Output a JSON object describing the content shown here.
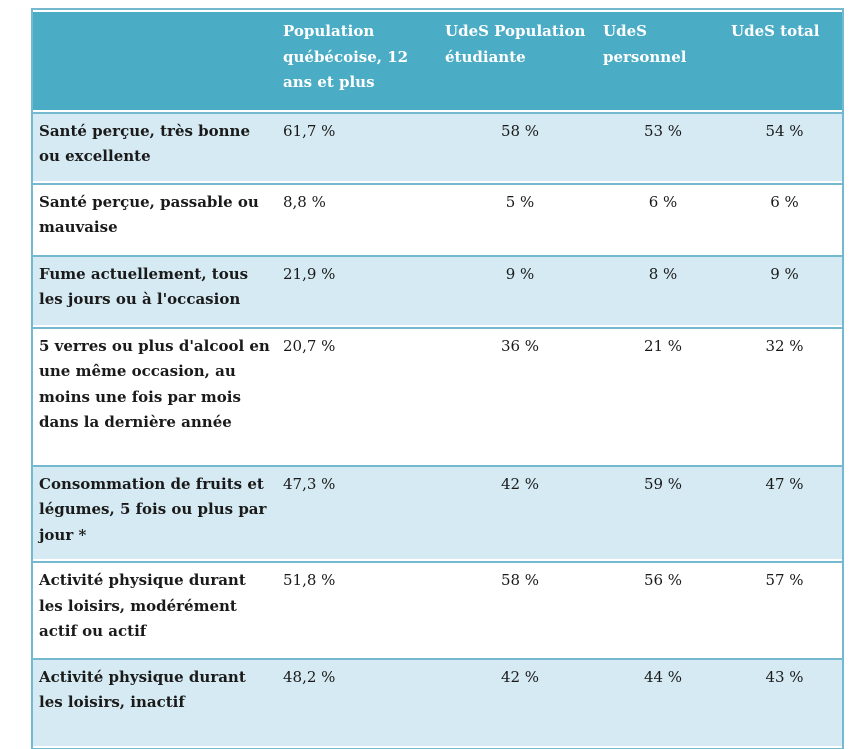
{
  "colors": {
    "header-bg": "#4BACC6",
    "row-alt-bg": "#D5EAF2",
    "row-bg": "#FFFFFF",
    "border": "#74B9CF",
    "header-text": "#FFFFFF",
    "body-text": "#1A1A1A"
  },
  "table": {
    "columns": [
      "",
      "Population québécoise, 12 ans et plus",
      "UdeS Population étudiante",
      "UdeS personnel",
      "UdeS total"
    ],
    "rows": [
      {
        "label": "Santé perçue, très bonne ou excellente",
        "values": [
          "61,7 %",
          "58 %",
          "53 %",
          "54 %"
        ]
      },
      {
        "label": "Santé perçue, passable ou mauvaise",
        "values": [
          "8,8 %",
          "5 %",
          "6 %",
          "6 %"
        ]
      },
      {
        "label": "Fume actuellement, tous les jours ou à l'occasion",
        "values": [
          "21,9 %",
          "9 %",
          "8 %",
          "9 %"
        ]
      },
      {
        "label": "5 verres ou plus d'alcool en une même occasion, au moins une fois par mois dans la dernière année",
        "values": [
          "20,7 %",
          "36 %",
          "21 %",
          "32 %"
        ]
      },
      {
        "label": "Consommation de fruits et légumes, 5 fois ou plus par jour *",
        "values": [
          "47,3 %",
          "42 %",
          "59 %",
          "47 %"
        ]
      },
      {
        "label": "Activité physique durant les loisirs, modérément actif ou actif",
        "values": [
          "51,8 %",
          "58 %",
          "56 %",
          "57 %"
        ]
      },
      {
        "label": "Activité physique durant les loisirs, inactif",
        "values": [
          "48,2 %",
          "42 %",
          "44 %",
          "43 %"
        ]
      }
    ]
  },
  "chart_data": {
    "type": "table",
    "categories": [
      "Santé perçue, très bonne ou excellente",
      "Santé perçue, passable ou mauvaise",
      "Fume actuellement, tous les jours ou à l'occasion",
      "5 verres ou plus d'alcool en une même occasion, au moins une fois par mois dans la dernière année",
      "Consommation de fruits et légumes, 5 fois ou plus par jour *",
      "Activité physique durant les loisirs, modérément actif ou actif",
      "Activité physique durant les loisirs, inactif"
    ],
    "series": [
      {
        "name": "Population québécoise, 12 ans et plus",
        "values": [
          61.7,
          8.8,
          21.9,
          20.7,
          47.3,
          51.8,
          48.2
        ]
      },
      {
        "name": "UdeS Population étudiante",
        "values": [
          58,
          5,
          9,
          36,
          42,
          58,
          42
        ]
      },
      {
        "name": "UdeS personnel",
        "values": [
          53,
          6,
          8,
          21,
          59,
          56,
          44
        ]
      },
      {
        "name": "UdeS total",
        "values": [
          54,
          6,
          9,
          32,
          47,
          57,
          43
        ]
      }
    ],
    "unit": "%"
  }
}
